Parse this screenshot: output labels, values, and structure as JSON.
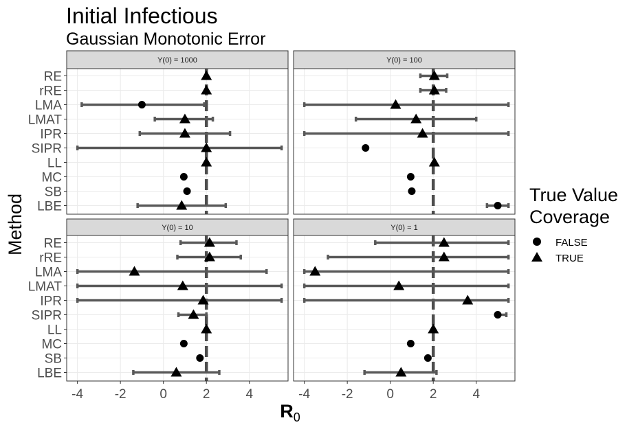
{
  "title": "Initial Infectious",
  "subtitle": "Gaussian Monotonic Error",
  "chart_data": {
    "type": "scatter",
    "xlabel": "R",
    "xlabel_sub": "0",
    "ylabel": "Method",
    "xlim": [
      -4.5,
      5.8
    ],
    "xticks": [
      -4,
      -2,
      0,
      2,
      4
    ],
    "xtick_labels": [
      "-4",
      "-2",
      "0",
      "2",
      "4"
    ],
    "true_value": 2,
    "methods": [
      "RE",
      "rRE",
      "LMA",
      "LMAT",
      "IPR",
      "SIPR",
      "LL",
      "MC",
      "SB",
      "LBE"
    ],
    "legend": {
      "title_line1": "True Value",
      "title_line2": "Coverage",
      "items": [
        {
          "label": "FALSE",
          "shape": "circle"
        },
        {
          "label": "TRUE",
          "shape": "triangle"
        }
      ]
    },
    "panels": [
      {
        "label": "Y(0) = 1000",
        "points": [
          {
            "method": "RE",
            "est": 2.0,
            "lo": 2.0,
            "hi": 2.0,
            "coverage": true
          },
          {
            "method": "rRE",
            "est": 2.0,
            "lo": 2.0,
            "hi": 2.0,
            "coverage": true
          },
          {
            "method": "LMA",
            "est": -1.0,
            "lo": -3.8,
            "hi": 1.9,
            "coverage": false
          },
          {
            "method": "LMAT",
            "est": 1.0,
            "lo": -0.4,
            "hi": 2.3,
            "coverage": true
          },
          {
            "method": "IPR",
            "est": 1.0,
            "lo": -1.1,
            "hi": 3.1,
            "coverage": true
          },
          {
            "method": "SIPR",
            "est": 2.0,
            "lo": -4.0,
            "hi": 5.5,
            "coverage": true
          },
          {
            "method": "LL",
            "est": 2.0,
            "lo": 2.0,
            "hi": 2.0,
            "coverage": true
          },
          {
            "method": "MC",
            "est": 0.95,
            "lo": 0.95,
            "hi": 0.95,
            "coverage": false
          },
          {
            "method": "SB",
            "est": 1.1,
            "lo": 1.1,
            "hi": 1.1,
            "coverage": false
          },
          {
            "method": "LBE",
            "est": 0.85,
            "lo": -1.2,
            "hi": 2.9,
            "coverage": true
          }
        ]
      },
      {
        "label": "Y(0) = 100",
        "points": [
          {
            "method": "RE",
            "est": 2.05,
            "lo": 1.4,
            "hi": 2.65,
            "coverage": true
          },
          {
            "method": "rRE",
            "est": 2.05,
            "lo": 1.4,
            "hi": 2.6,
            "coverage": true
          },
          {
            "method": "LMA",
            "est": 0.25,
            "lo": -4.0,
            "hi": 5.5,
            "coverage": true
          },
          {
            "method": "LMAT",
            "est": 1.2,
            "lo": -1.6,
            "hi": 4.0,
            "coverage": true
          },
          {
            "method": "IPR",
            "est": 1.5,
            "lo": -4.0,
            "hi": 5.5,
            "coverage": true
          },
          {
            "method": "SIPR",
            "est": -1.15,
            "lo": -1.15,
            "hi": -1.15,
            "coverage": false
          },
          {
            "method": "LL",
            "est": 2.05,
            "lo": 2.05,
            "hi": 2.05,
            "coverage": true
          },
          {
            "method": "MC",
            "est": 0.95,
            "lo": 0.95,
            "hi": 0.95,
            "coverage": false
          },
          {
            "method": "SB",
            "est": 1.0,
            "lo": 1.0,
            "hi": 1.0,
            "coverage": false
          },
          {
            "method": "LBE",
            "est": 5.0,
            "lo": 4.5,
            "hi": 5.5,
            "coverage": false
          }
        ]
      },
      {
        "label": "Y(0) = 10",
        "points": [
          {
            "method": "RE",
            "est": 2.15,
            "lo": 0.8,
            "hi": 3.4,
            "coverage": true
          },
          {
            "method": "rRE",
            "est": 2.15,
            "lo": 0.65,
            "hi": 3.6,
            "coverage": true
          },
          {
            "method": "LMA",
            "est": -1.35,
            "lo": -4.0,
            "hi": 4.8,
            "coverage": true
          },
          {
            "method": "LMAT",
            "est": 0.9,
            "lo": -4.0,
            "hi": 5.5,
            "coverage": true
          },
          {
            "method": "IPR",
            "est": 1.85,
            "lo": -4.0,
            "hi": 5.5,
            "coverage": true
          },
          {
            "method": "SIPR",
            "est": 1.4,
            "lo": 0.7,
            "hi": 2.0,
            "coverage": true
          },
          {
            "method": "LL",
            "est": 2.0,
            "lo": 2.0,
            "hi": 2.0,
            "coverage": true
          },
          {
            "method": "MC",
            "est": 0.95,
            "lo": 0.95,
            "hi": 0.95,
            "coverage": false
          },
          {
            "method": "SB",
            "est": 1.7,
            "lo": 1.7,
            "hi": 1.7,
            "coverage": false
          },
          {
            "method": "LBE",
            "est": 0.6,
            "lo": -1.4,
            "hi": 2.6,
            "coverage": true
          }
        ]
      },
      {
        "label": "Y(0) = 1",
        "points": [
          {
            "method": "RE",
            "est": 2.5,
            "lo": -0.7,
            "hi": 5.5,
            "coverage": true
          },
          {
            "method": "rRE",
            "est": 2.5,
            "lo": -2.9,
            "hi": 5.5,
            "coverage": true
          },
          {
            "method": "LMA",
            "est": -3.5,
            "lo": -4.0,
            "hi": 5.5,
            "coverage": true
          },
          {
            "method": "LMAT",
            "est": 0.4,
            "lo": -4.0,
            "hi": 5.5,
            "coverage": true
          },
          {
            "method": "IPR",
            "est": 3.6,
            "lo": -4.0,
            "hi": 5.5,
            "coverage": true
          },
          {
            "method": "SIPR",
            "est": 5.0,
            "lo": 5.0,
            "hi": 5.4,
            "coverage": false
          },
          {
            "method": "LL",
            "est": 2.0,
            "lo": 2.0,
            "hi": 2.0,
            "coverage": true
          },
          {
            "method": "MC",
            "est": 0.95,
            "lo": 0.95,
            "hi": 0.95,
            "coverage": false
          },
          {
            "method": "SB",
            "est": 1.75,
            "lo": 1.75,
            "hi": 1.75,
            "coverage": false
          },
          {
            "method": "LBE",
            "est": 0.5,
            "lo": -1.2,
            "hi": 2.15,
            "coverage": true
          }
        ]
      }
    ]
  }
}
